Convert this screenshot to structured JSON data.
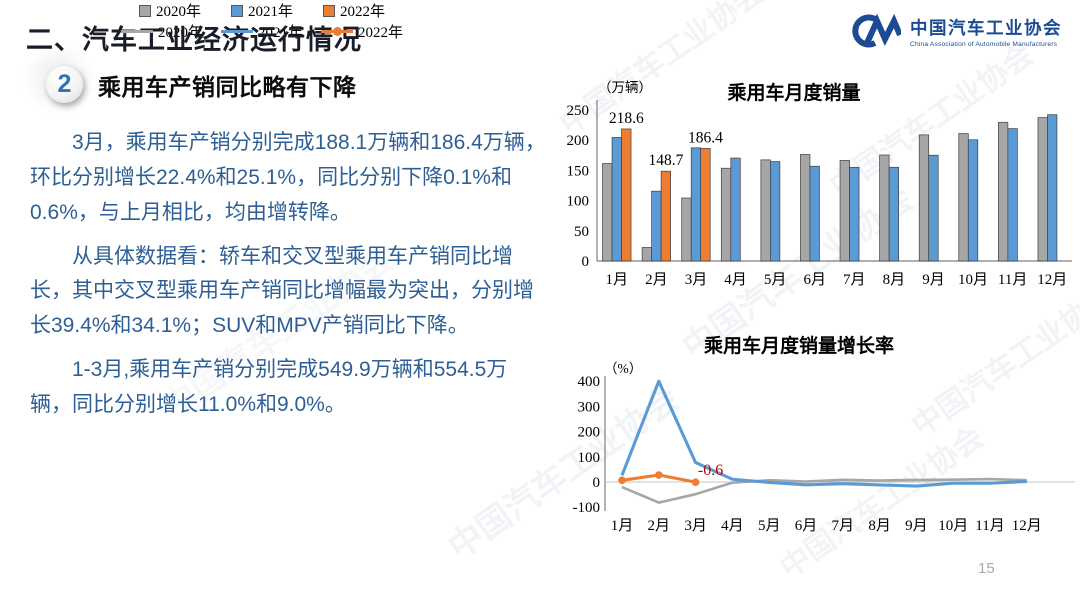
{
  "page": {
    "title": "二、汽车工业经济运行情况",
    "page_number": "15"
  },
  "logo": {
    "name_cn": "中国汽车工业协会",
    "name_en": "China Association of Automobile Manufacturers",
    "color": "#1c4a94"
  },
  "watermark_text": "中国汽车工业协会",
  "section": {
    "badge": "2",
    "heading": "乘用车产销同比略有下降",
    "paragraphs": [
      "3月，乘用车产销分别完成188.1万辆和186.4万辆，环比分别增长22.4%和25.1%，同比分别下降0.1%和0.6%，与上月相比，均由增转降。",
      "从具体数据看：轿车和交叉型乘用车产销同比增长，其中交叉型乘用车产销同比增幅最为突出，分别增长39.4%和34.1%；SUV和MPV产销同比下降。",
      "1-3月,乘用车产销分别完成549.9万辆和554.5万辆，同比分别增长11.0%和9.0%。"
    ]
  },
  "colors": {
    "body_text": "#2e5f94",
    "series_2020": "#a6a6a6",
    "series_2021": "#5b9bd5",
    "series_2022": "#ed7d31",
    "annotation_red": "#c00000",
    "axis": "#7f7f7f"
  },
  "chart_data": [
    {
      "type": "bar",
      "title": "乘用车月度销量",
      "unit_label": "（万辆）",
      "categories": [
        "1月",
        "2月",
        "3月",
        "4月",
        "5月",
        "6月",
        "7月",
        "8月",
        "9月",
        "10月",
        "11月",
        "12月"
      ],
      "series": [
        {
          "name": "2020年",
          "color": "#a6a6a6",
          "values": [
            161.4,
            22.4,
            104.3,
            153.6,
            167.4,
            176.4,
            166.5,
            175.5,
            208.8,
            211.0,
            229.7,
            237.5
          ]
        },
        {
          "name": "2021年",
          "color": "#5b9bd5",
          "values": [
            204.5,
            115.6,
            187.4,
            170.4,
            164.6,
            156.9,
            155.1,
            155.2,
            175.1,
            200.7,
            219.2,
            242.2
          ]
        },
        {
          "name": "2022年",
          "color": "#ed7d31",
          "values": [
            218.6,
            148.7,
            186.4,
            null,
            null,
            null,
            null,
            null,
            null,
            null,
            null,
            null
          ]
        }
      ],
      "data_labels": [
        {
          "series": 2,
          "index": 0,
          "text": "218.6"
        },
        {
          "series": 2,
          "index": 1,
          "text": "148.7"
        },
        {
          "series": 2,
          "index": 2,
          "text": "186.4"
        }
      ],
      "ylim": [
        0,
        250
      ],
      "yticks": [
        0,
        50,
        100,
        150,
        200,
        250
      ],
      "grid": false,
      "legend_position": "bottom"
    },
    {
      "type": "line",
      "title": "乘用车月度销量增长率",
      "unit_label": "（%）",
      "categories": [
        "1月",
        "2月",
        "3月",
        "4月",
        "5月",
        "6月",
        "7月",
        "8月",
        "9月",
        "10月",
        "11月",
        "12月"
      ],
      "series": [
        {
          "name": "2020年",
          "color": "#a6a6a6",
          "marker": false,
          "values": [
            -20.2,
            -81.7,
            -48.4,
            -2.6,
            7.0,
            1.8,
            8.5,
            6.0,
            8.1,
            9.3,
            11.6,
            7.2
          ]
        },
        {
          "name": "2021年",
          "color": "#5b9bd5",
          "marker": false,
          "values": [
            26.7,
            400,
            77,
            10.9,
            -1.7,
            -11.1,
            -6.8,
            -11.6,
            -16.1,
            -4.9,
            -4.6,
            2.0
          ]
        },
        {
          "name": "2022年",
          "color": "#ed7d31",
          "marker": true,
          "values": [
            6.7,
            27.8,
            -0.6,
            null,
            null,
            null,
            null,
            null,
            null,
            null,
            null,
            null
          ]
        }
      ],
      "annotations": [
        {
          "text": "-0.6",
          "color": "#c00000",
          "series": 2,
          "index": 2
        }
      ],
      "ylim": [
        -100,
        400
      ],
      "yticks": [
        -100,
        0,
        100,
        200,
        300,
        400
      ],
      "grid": "zero-line-only",
      "legend_position": "bottom"
    }
  ]
}
